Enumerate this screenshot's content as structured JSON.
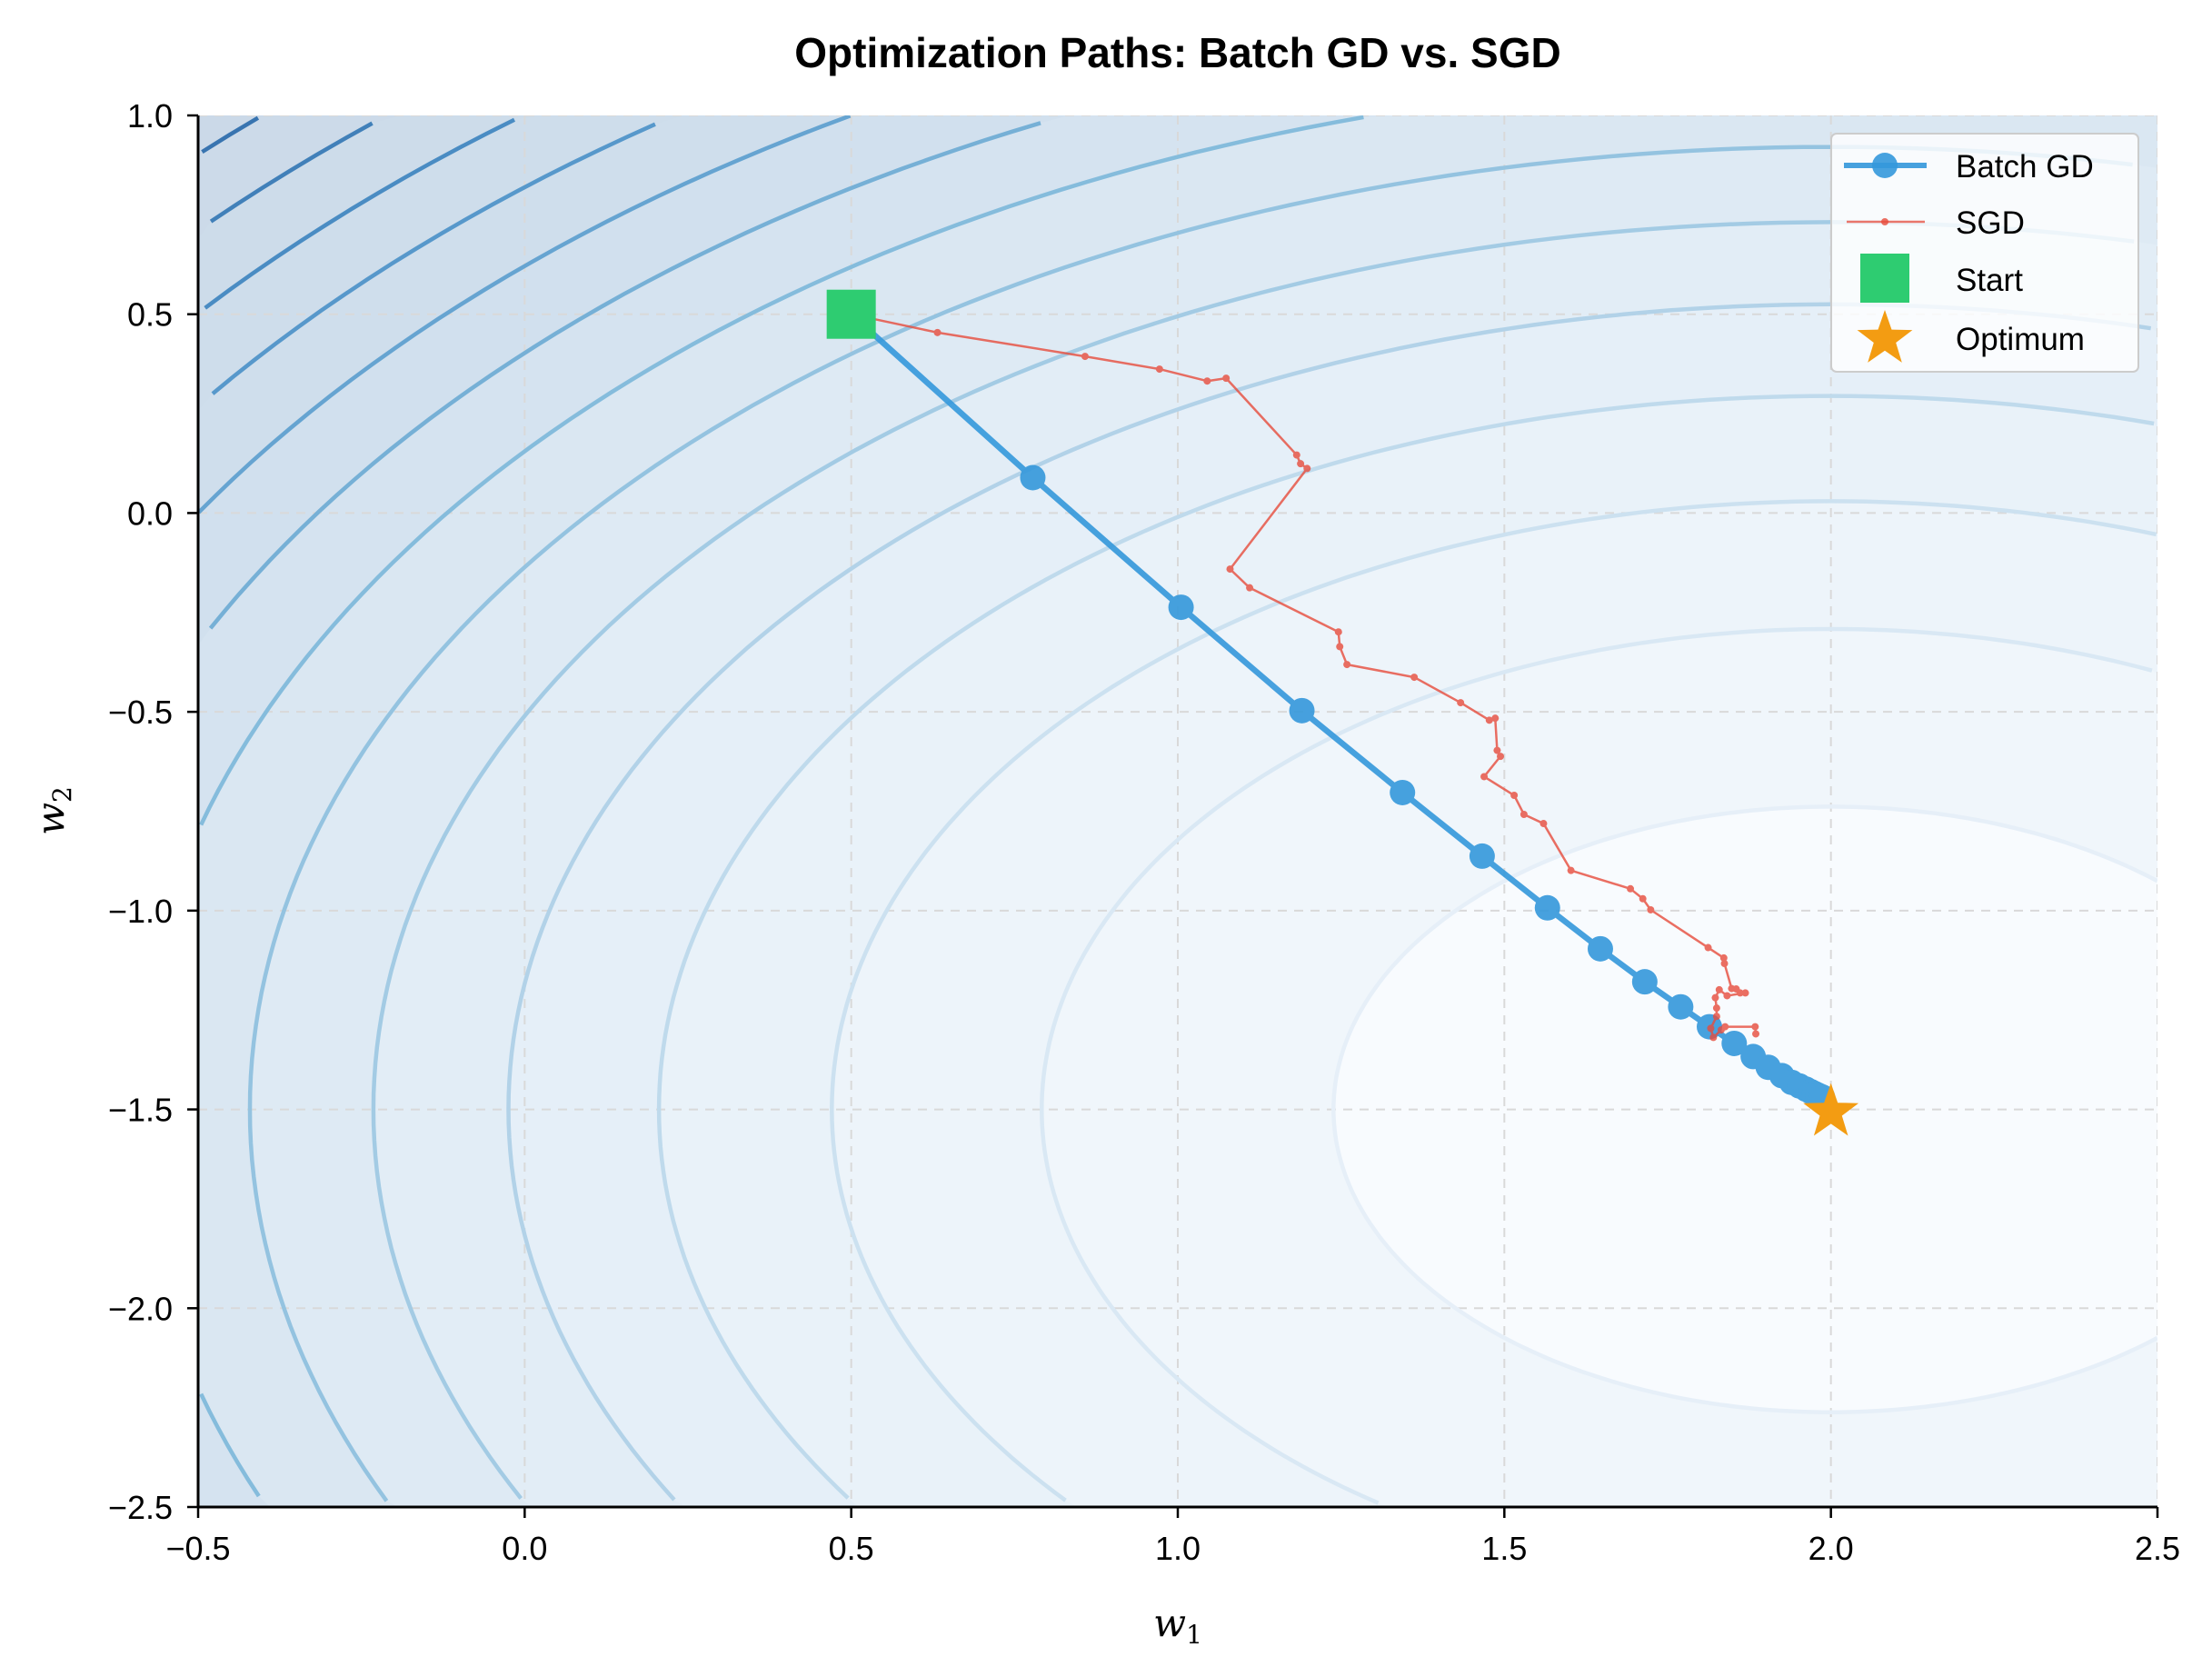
{
  "chart_data": {
    "type": "line",
    "title": "Optimization Paths: Batch GD vs. SGD",
    "xlabel": {
      "base": "w",
      "sub": "1"
    },
    "ylabel": {
      "base": "w",
      "sub": "2"
    },
    "xlim": [
      -0.5,
      2.5
    ],
    "ylim": [
      -2.5,
      1.0
    ],
    "xticks": [
      "−0.5",
      "0.0",
      "0.5",
      "1.0",
      "1.5",
      "2.0",
      "2.5"
    ],
    "xtick_values": [
      -0.5,
      0.0,
      0.5,
      1.0,
      1.5,
      2.0,
      2.5
    ],
    "yticks": [
      "−2.5",
      "−2.0",
      "−1.5",
      "−1.0",
      "−0.5",
      "0.0",
      "0.5",
      "1.0"
    ],
    "ytick_values": [
      -2.5,
      -2.0,
      -1.5,
      -1.0,
      -0.5,
      0.0,
      0.5,
      1.0
    ],
    "grid": true,
    "legend_position": "top-right",
    "contour": {
      "center": [
        2.0,
        -1.5
      ],
      "levels": [
        0.58,
        1.46,
        2.34,
        3.22,
        4.1,
        4.98,
        5.86,
        6.74,
        7.62,
        8.5,
        9.38,
        10.26,
        11.14,
        12.02,
        12.9
      ],
      "colormap": "Blues"
    },
    "series": [
      {
        "name": "Batch GD",
        "color": "#3498db",
        "marker": "circle",
        "points": [
          [
            0.5,
            0.5
          ],
          [
            0.778,
            0.089
          ],
          [
            1.005,
            -0.237
          ],
          [
            1.19,
            -0.497
          ],
          [
            1.344,
            -0.703
          ],
          [
            1.466,
            -0.863
          ],
          [
            1.566,
            -0.993
          ],
          [
            1.647,
            -1.096
          ],
          [
            1.715,
            -1.179
          ],
          [
            1.77,
            -1.242
          ],
          [
            1.814,
            -1.292
          ],
          [
            1.852,
            -1.334
          ],
          [
            1.881,
            -1.367
          ],
          [
            1.904,
            -1.394
          ],
          [
            1.925,
            -1.415
          ],
          [
            1.94,
            -1.432
          ],
          [
            1.952,
            -1.441
          ],
          [
            1.962,
            -1.449
          ],
          [
            1.969,
            -1.455
          ],
          [
            1.975,
            -1.46
          ],
          [
            1.98,
            -1.464
          ],
          [
            1.984,
            -1.467
          ],
          [
            1.987,
            -1.469
          ]
        ]
      },
      {
        "name": "SGD",
        "color": "#e74c3c",
        "marker": "dot",
        "points": [
          [
            0.5,
            0.5
          ],
          [
            0.632,
            0.454
          ],
          [
            0.858,
            0.394
          ],
          [
            0.972,
            0.362
          ],
          [
            1.045,
            0.332
          ],
          [
            1.074,
            0.339
          ],
          [
            1.182,
            0.146
          ],
          [
            1.188,
            0.124
          ],
          [
            1.198,
            0.112
          ],
          [
            1.08,
            -0.141
          ],
          [
            1.11,
            -0.188
          ],
          [
            1.246,
            -0.299
          ],
          [
            1.248,
            -0.336
          ],
          [
            1.259,
            -0.381
          ],
          [
            1.362,
            -0.413
          ],
          [
            1.433,
            -0.477
          ],
          [
            1.477,
            -0.521
          ],
          [
            1.486,
            -0.516
          ],
          [
            1.489,
            -0.597
          ],
          [
            1.494,
            -0.612
          ],
          [
            1.469,
            -0.663
          ],
          [
            1.515,
            -0.71
          ],
          [
            1.53,
            -0.758
          ],
          [
            1.56,
            -0.781
          ],
          [
            1.602,
            -0.899
          ],
          [
            1.693,
            -0.945
          ],
          [
            1.712,
            -0.97
          ],
          [
            1.724,
            -0.998
          ],
          [
            1.812,
            -1.093
          ],
          [
            1.836,
            -1.119
          ],
          [
            1.837,
            -1.133
          ],
          [
            1.848,
            -1.196
          ],
          [
            1.855,
            -1.197
          ],
          [
            1.861,
            -1.207
          ],
          [
            1.869,
            -1.207
          ],
          [
            1.841,
            -1.214
          ],
          [
            1.829,
            -1.199
          ],
          [
            1.823,
            -1.219
          ],
          [
            1.825,
            -1.245
          ],
          [
            1.825,
            -1.266
          ],
          [
            1.816,
            -1.296
          ],
          [
            1.82,
            -1.319
          ],
          [
            1.832,
            -1.3
          ],
          [
            1.838,
            -1.292
          ],
          [
            1.884,
            -1.292
          ],
          [
            1.885,
            -1.31
          ]
        ]
      }
    ],
    "markers": [
      {
        "name": "Start",
        "point": [
          0.5,
          0.5
        ],
        "shape": "square",
        "color": "#2ecc71"
      },
      {
        "name": "Optimum",
        "point": [
          2.0,
          -1.5
        ],
        "shape": "star",
        "color": "#f39c12"
      }
    ]
  }
}
